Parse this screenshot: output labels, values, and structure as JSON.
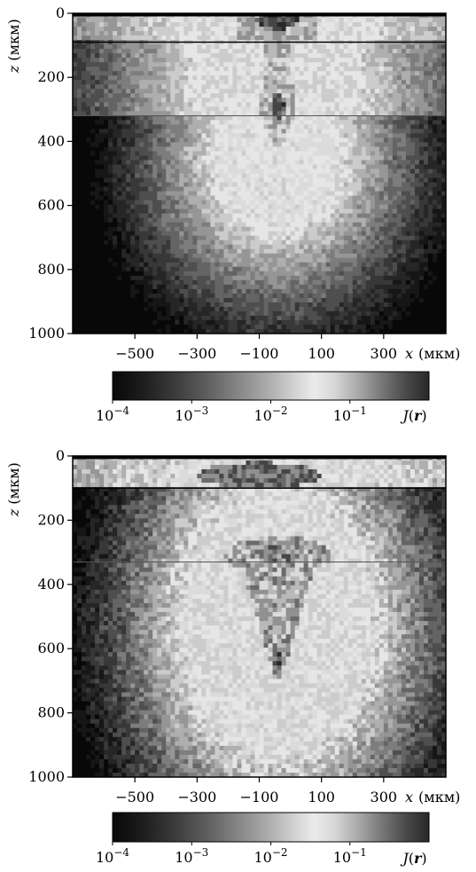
{
  "chart_data": [
    {
      "type": "heatmap",
      "title": "",
      "xlabel": {
        "symbol": "x",
        "unit": "(мкм)"
      },
      "ylabel": {
        "symbol": "z",
        "unit": "(мкм)"
      },
      "xlim": [
        -700,
        500
      ],
      "ylim": [
        1000,
        0
      ],
      "x_ticks": [
        "−500",
        "−300",
        "−100",
        "100",
        "300"
      ],
      "x_tick_values": [
        -500,
        -300,
        -100,
        100,
        300
      ],
      "y_ticks": [
        "0",
        "200",
        "400",
        "600",
        "800",
        "1000"
      ],
      "y_tick_values": [
        0,
        200,
        400,
        600,
        800,
        1000
      ],
      "layer_boundaries_z": [
        90,
        320
      ],
      "colorbar": {
        "label_symbol": "J",
        "label_arg": "r",
        "scale": "log",
        "range": [
          0.0001,
          1
        ],
        "ticks": [
          "10−4",
          "10−3",
          "10−2",
          "10−1"
        ],
        "tick_exponents": [
          -4,
          -3,
          -2,
          -1
        ]
      },
      "features": {
        "surface_core": {
          "x": -40,
          "z": 20,
          "rx": 70,
          "rz": 30,
          "log_J": -0.3
        },
        "beam_column": {
          "x_range": [
            -90,
            10
          ],
          "z_range": [
            90,
            320
          ],
          "log_J": -0.8
        },
        "focus_spot": {
          "x": -40,
          "z": 290,
          "rx": 20,
          "rz": 40,
          "log_J": -0.3
        },
        "bright_halo_center": {
          "x": -40,
          "z": 450,
          "log_J": -1.4
        }
      }
    },
    {
      "type": "heatmap",
      "title": "",
      "xlabel": {
        "symbol": "x",
        "unit": "(мкм)"
      },
      "ylabel": {
        "symbol": "z",
        "unit": "(мкм)"
      },
      "xlim": [
        -700,
        500
      ],
      "ylim": [
        1000,
        0
      ],
      "x_ticks": [
        "−500",
        "−300",
        "−100",
        "100",
        "300"
      ],
      "x_tick_values": [
        -500,
        -300,
        -100,
        100,
        300
      ],
      "y_ticks": [
        "0",
        "200",
        "400",
        "600",
        "800",
        "1000"
      ],
      "y_tick_values": [
        0,
        200,
        400,
        600,
        800,
        1000
      ],
      "layer_boundaries_z": [
        100,
        330
      ],
      "colorbar": {
        "label_symbol": "J",
        "label_arg": "r",
        "scale": "log",
        "range": [
          0.0001,
          1
        ],
        "ticks": [
          "10−4",
          "10−3",
          "10−2",
          "10−1"
        ],
        "tick_exponents": [
          -4,
          -3,
          -2,
          -1
        ]
      },
      "features": {
        "surface_core": {
          "x": -100,
          "z": 60,
          "rx": 200,
          "rz": 40,
          "log_J": -0.5
        },
        "mid_band": {
          "x": -40,
          "z": 310,
          "rx": 170,
          "rz": 60,
          "log_J": -0.6
        },
        "focus_cone": {
          "x_range": [
            -150,
            60
          ],
          "z_range": [
            340,
            700
          ],
          "log_J": -0.9
        },
        "focus_spot": {
          "x": -40,
          "z": 630,
          "rx": 15,
          "rz": 40,
          "log_J": -0.3
        }
      }
    }
  ]
}
